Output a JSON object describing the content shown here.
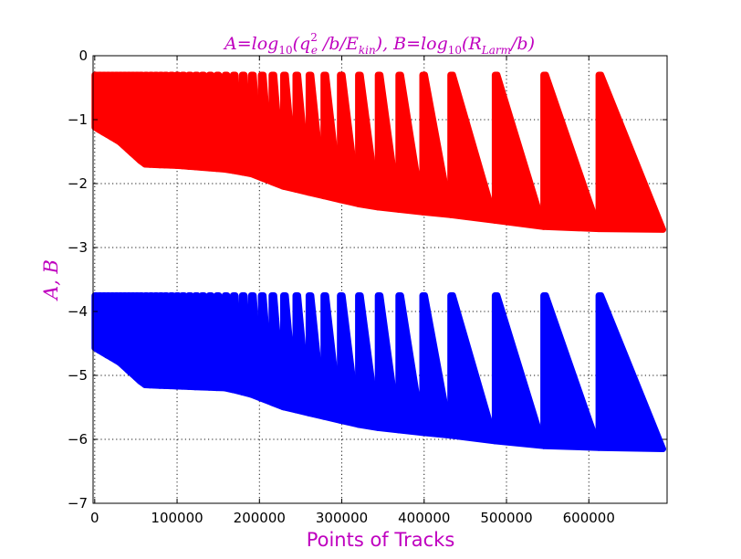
{
  "chart_data": {
    "type": "scatter",
    "title": "A=log10(qe² /b/Ekin), B=log10(RLarm/b)",
    "title_parts": {
      "a_lhs": "A",
      "eq": "=",
      "log": "log",
      "sub10": "10",
      "a_open": "(q",
      "sup2": "2",
      "sub_e": "e",
      "a_mid": " /b/E",
      "sub_kin": "kin",
      "a_close": "),",
      "b_lhs": " B",
      "b_open": "(R",
      "sub_larm": "Larm",
      "b_close": "/b)"
    },
    "xlabel": "Points of Tracks",
    "ylabel": "A, B",
    "xlim": [
      -2000,
      695000
    ],
    "ylim": [
      -7,
      0
    ],
    "xticks": [
      0,
      100000,
      200000,
      300000,
      400000,
      500000,
      600000
    ],
    "yticks": [
      0,
      -1,
      -2,
      -3,
      -4,
      -5,
      -6,
      -7
    ],
    "grid": true,
    "legend": "none",
    "series": [
      {
        "color": "#ff0000",
        "peak": -0.3,
        "bottom": [
          [
            0,
            -1.12
          ],
          [
            30000,
            -1.35
          ],
          [
            60000,
            -1.7
          ],
          [
            100000,
            -1.72
          ],
          [
            160000,
            -1.78
          ],
          [
            190000,
            -1.85
          ],
          [
            230000,
            -2.05
          ],
          [
            280000,
            -2.2
          ],
          [
            330000,
            -2.35
          ],
          [
            400000,
            -2.45
          ],
          [
            440000,
            -2.5
          ],
          [
            500000,
            -2.6
          ],
          [
            560000,
            -2.7
          ],
          [
            690000,
            -2.72
          ]
        ]
      },
      {
        "color": "#0000ff",
        "peak": -3.75,
        "bottom": [
          [
            0,
            -4.57
          ],
          [
            30000,
            -4.8
          ],
          [
            60000,
            -5.15
          ],
          [
            100000,
            -5.17
          ],
          [
            160000,
            -5.2
          ],
          [
            190000,
            -5.3
          ],
          [
            230000,
            -5.5
          ],
          [
            280000,
            -5.65
          ],
          [
            330000,
            -5.8
          ],
          [
            400000,
            -5.9
          ],
          [
            440000,
            -5.95
          ],
          [
            500000,
            -6.05
          ],
          [
            560000,
            -6.12
          ],
          [
            690000,
            -6.15
          ]
        ]
      }
    ],
    "track_starts": [
      0,
      5000,
      10000,
      15000,
      20000,
      25000,
      30000,
      35000,
      40000,
      45000,
      50000,
      55000,
      61000,
      67000,
      73000,
      79000,
      85000,
      92000,
      99000,
      106000,
      114000,
      122000,
      130000,
      139000,
      148000,
      158000,
      168000,
      179000,
      190000,
      202000,
      215000,
      229000,
      244000,
      260000,
      278000,
      298000,
      320000,
      344000,
      369000,
      398000,
      432000,
      486000,
      545000,
      612000,
      690000
    ]
  }
}
